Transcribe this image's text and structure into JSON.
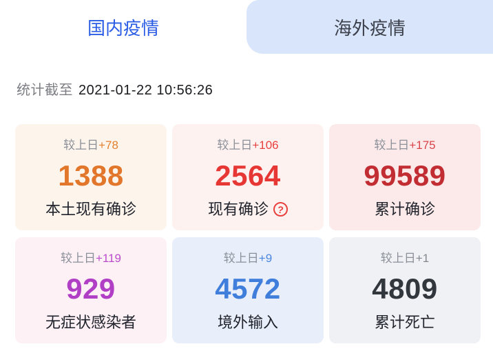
{
  "tabs": [
    {
      "label": "国内疫情",
      "active": true,
      "text_color": "#2b5ce5"
    },
    {
      "label": "海外疫情",
      "active": false,
      "text_color": "#3b404b",
      "bg_color": "#d9e5fa"
    }
  ],
  "stats_time": {
    "prefix": "统计截至",
    "datetime": "2021-01-22 10:56:26"
  },
  "cards": [
    {
      "delta_label": "较上日",
      "delta": "+78",
      "value": "1388",
      "label": "本土现有确诊",
      "delta_color": "#e28030",
      "value_color": "#e2762a",
      "bg_color": "#fdf5ec"
    },
    {
      "delta_label": "较上日",
      "delta": "+106",
      "value": "2564",
      "label": "现有确诊",
      "delta_color": "#e8403d",
      "value_color": "#e63734",
      "bg_color": "#fdf2f0",
      "help_icon_glyph": "?"
    },
    {
      "delta_label": "较上日",
      "delta": "+175",
      "value": "99589",
      "label": "累计确诊",
      "delta_color": "#d8444a",
      "value_color": "#c12d32",
      "bg_color": "#fbeae9"
    },
    {
      "delta_label": "较上日",
      "delta": "+119",
      "value": "929",
      "label": "无症状感染者",
      "delta_color": "#ba4cca",
      "value_color": "#b03fc5",
      "bg_color": "#fdf1f6"
    },
    {
      "delta_label": "较上日",
      "delta": "+9",
      "value": "4572",
      "label": "境外输入",
      "delta_color": "#4a86e0",
      "value_color": "#407edb",
      "bg_color": "#e9effa"
    },
    {
      "delta_label": "较上日",
      "delta": "+1",
      "value": "4809",
      "label": "累计死亡",
      "delta_color": "#82868e",
      "value_color": "#32363d",
      "bg_color": "#eff1f5"
    }
  ]
}
